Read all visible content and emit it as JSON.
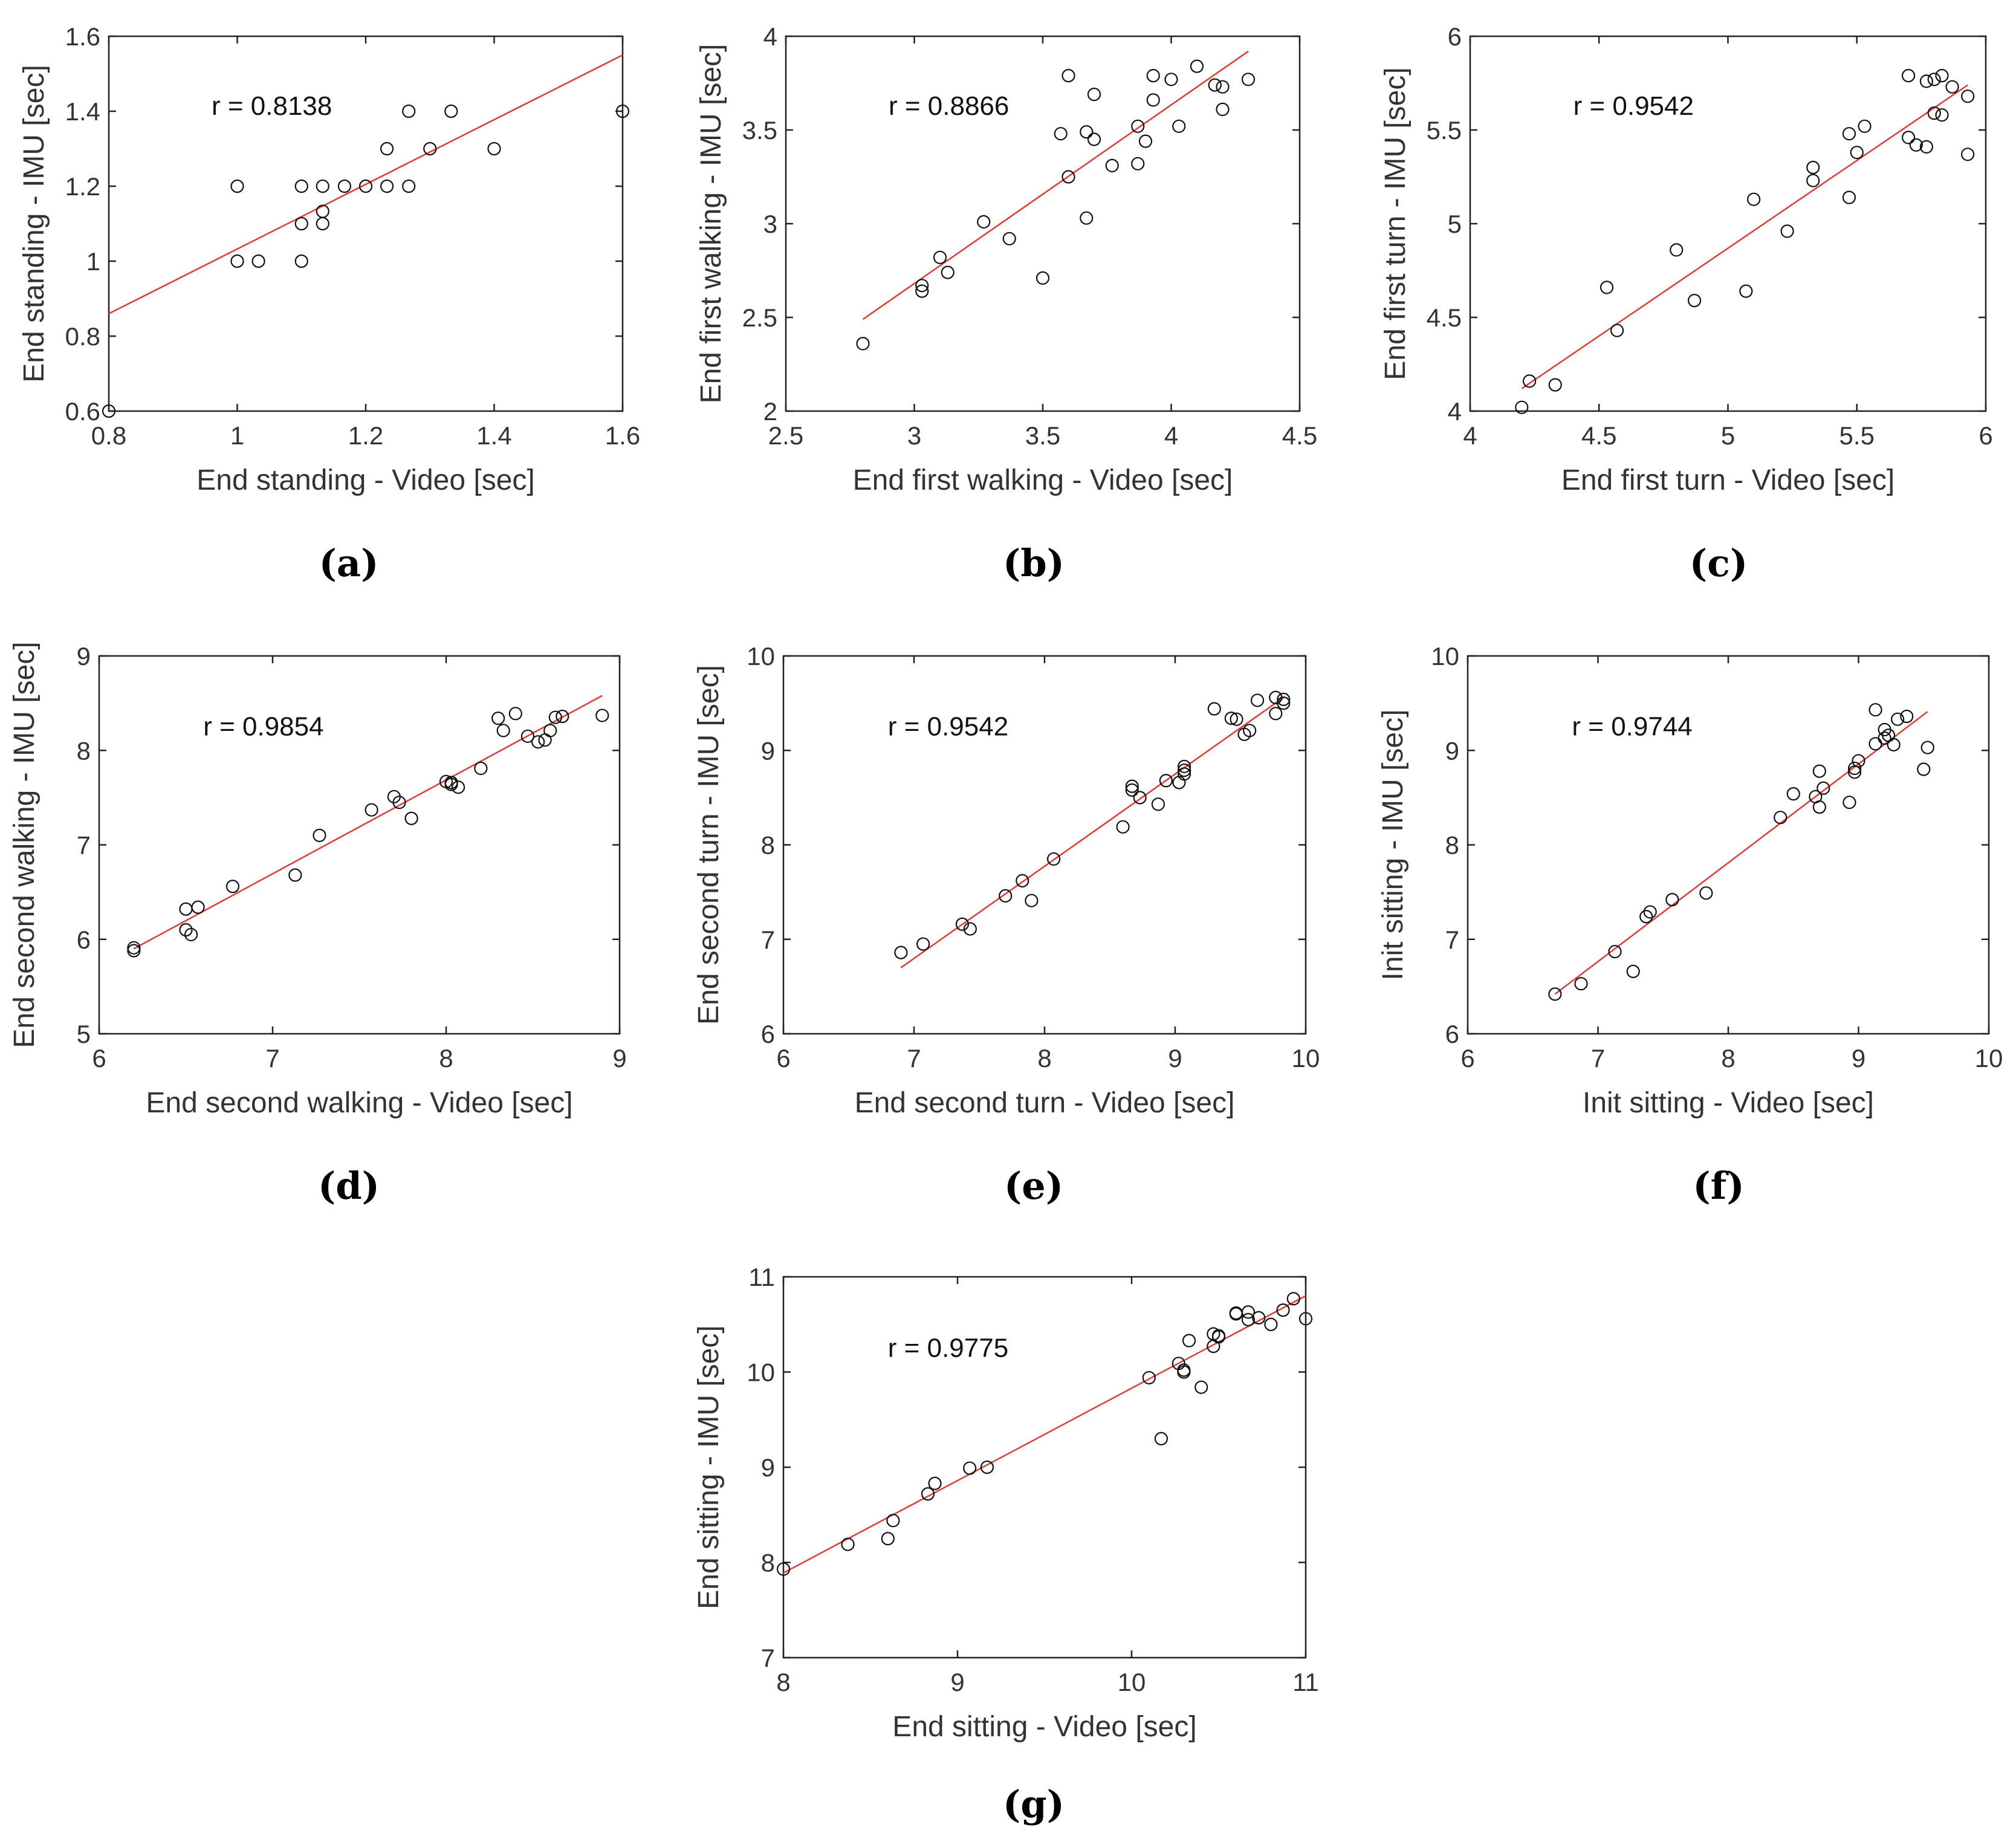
{
  "chart_data": [
    {
      "type": "scatter",
      "label": "(a)",
      "xlabel": "End standing - Video [sec]",
      "ylabel": "End standing - IMU [sec]",
      "annotation": "r = 0.8138",
      "xlim": [
        0.8,
        1.6
      ],
      "ylim": [
        0.6,
        1.6
      ],
      "xticks": [
        0.8,
        1,
        1.2,
        1.4,
        1.6
      ],
      "yticks": [
        0.6,
        0.8,
        1,
        1.2,
        1.4,
        1.6
      ],
      "xtick_labels": [
        "0.8",
        "1",
        "1.2",
        "1.4",
        "1.6"
      ],
      "ytick_labels": [
        "0.6",
        "0.8",
        "1",
        "1.2",
        "1.4",
        "1.6"
      ],
      "fit": {
        "x": [
          0.8,
          1.6
        ],
        "y": [
          0.86,
          1.55
        ]
      },
      "points": [
        [
          0.8,
          0.6
        ],
        [
          1.0,
          1.0
        ],
        [
          1.0,
          1.2
        ],
        [
          1.033,
          1.0
        ],
        [
          1.1,
          1.0
        ],
        [
          1.1,
          1.1
        ],
        [
          1.1,
          1.2
        ],
        [
          1.133,
          1.1
        ],
        [
          1.133,
          1.133
        ],
        [
          1.133,
          1.2
        ],
        [
          1.167,
          1.2
        ],
        [
          1.2,
          1.2
        ],
        [
          1.233,
          1.2
        ],
        [
          1.233,
          1.3
        ],
        [
          1.267,
          1.2
        ],
        [
          1.267,
          1.4
        ],
        [
          1.3,
          1.3
        ],
        [
          1.333,
          1.4
        ],
        [
          1.4,
          1.3
        ],
        [
          1.6,
          1.4
        ]
      ]
    },
    {
      "type": "scatter",
      "label": "(b)",
      "xlabel": "End first walking - Video [sec]",
      "ylabel": "End first walking - IMU [sec]",
      "annotation": "r = 0.8866",
      "xlim": [
        2.5,
        4.5
      ],
      "ylim": [
        2,
        4
      ],
      "xticks": [
        2.5,
        3,
        3.5,
        4,
        4.5
      ],
      "yticks": [
        2,
        2.5,
        3,
        3.5,
        4
      ],
      "xtick_labels": [
        "2.5",
        "3",
        "3.5",
        "4",
        "4.5"
      ],
      "ytick_labels": [
        "2",
        "2.5",
        "3",
        "3.5",
        "4"
      ],
      "fit": {
        "x": [
          2.8,
          4.3
        ],
        "y": [
          2.49,
          3.92
        ]
      },
      "points": [
        [
          2.8,
          2.36
        ],
        [
          3.03,
          2.67
        ],
        [
          3.03,
          2.64
        ],
        [
          3.1,
          2.82
        ],
        [
          3.13,
          2.74
        ],
        [
          3.27,
          3.01
        ],
        [
          3.37,
          2.92
        ],
        [
          3.5,
          2.71
        ],
        [
          3.57,
          3.48
        ],
        [
          3.6,
          3.25
        ],
        [
          3.6,
          3.79
        ],
        [
          3.67,
          3.49
        ],
        [
          3.67,
          3.03
        ],
        [
          3.7,
          3.45
        ],
        [
          3.7,
          3.69
        ],
        [
          3.77,
          3.31
        ],
        [
          3.87,
          3.32
        ],
        [
          3.87,
          3.52
        ],
        [
          3.9,
          3.44
        ],
        [
          3.93,
          3.66
        ],
        [
          3.93,
          3.79
        ],
        [
          4.0,
          3.77
        ],
        [
          4.03,
          3.52
        ],
        [
          4.1,
          3.84
        ],
        [
          4.17,
          3.74
        ],
        [
          4.2,
          3.73
        ],
        [
          4.2,
          3.61
        ],
        [
          4.3,
          3.77
        ]
      ]
    },
    {
      "type": "scatter",
      "label": "(c)",
      "xlabel": "End first turn - Video [sec]",
      "ylabel": "End first turn - IMU [sec]",
      "annotation": "r = 0.9542",
      "xlim": [
        4,
        6
      ],
      "ylim": [
        4,
        6
      ],
      "xticks": [
        4,
        4.5,
        5,
        5.5,
        6
      ],
      "yticks": [
        4,
        4.5,
        5,
        5.5,
        6
      ],
      "xtick_labels": [
        "4",
        "4.5",
        "5",
        "5.5",
        "6"
      ],
      "ytick_labels": [
        "4",
        "4.5",
        "5",
        "5.5",
        "6"
      ],
      "fit": {
        "x": [
          4.2,
          5.93
        ],
        "y": [
          4.12,
          5.74
        ]
      },
      "points": [
        [
          4.2,
          4.02
        ],
        [
          4.23,
          4.16
        ],
        [
          4.33,
          4.14
        ],
        [
          4.53,
          4.66
        ],
        [
          4.57,
          4.43
        ],
        [
          4.8,
          4.86
        ],
        [
          4.87,
          4.59
        ],
        [
          5.07,
          4.64
        ],
        [
          5.1,
          5.13
        ],
        [
          5.23,
          4.96
        ],
        [
          5.33,
          5.23
        ],
        [
          5.33,
          5.3
        ],
        [
          5.47,
          5.14
        ],
        [
          5.47,
          5.48
        ],
        [
          5.5,
          5.38
        ],
        [
          5.53,
          5.52
        ],
        [
          5.7,
          5.46
        ],
        [
          5.7,
          5.79
        ],
        [
          5.73,
          5.42
        ],
        [
          5.77,
          5.41
        ],
        [
          5.77,
          5.76
        ],
        [
          5.8,
          5.77
        ],
        [
          5.8,
          5.59
        ],
        [
          5.83,
          5.79
        ],
        [
          5.83,
          5.58
        ],
        [
          5.87,
          5.73
        ],
        [
          5.93,
          5.68
        ],
        [
          5.93,
          5.37
        ]
      ]
    },
    {
      "type": "scatter",
      "label": "(d)",
      "xlabel": "End second walking - Video [sec]",
      "ylabel": "End second walking - IMU [sec]",
      "annotation": "r = 0.9854",
      "xlim": [
        6,
        9
      ],
      "ylim": [
        5,
        9
      ],
      "xticks": [
        6,
        7,
        8,
        9
      ],
      "yticks": [
        5,
        6,
        7,
        8,
        9
      ],
      "xtick_labels": [
        "6",
        "7",
        "8",
        "9"
      ],
      "ytick_labels": [
        "5",
        "6",
        "7",
        "8",
        "9"
      ],
      "fit": {
        "x": [
          6.2,
          8.9
        ],
        "y": [
          5.9,
          8.58
        ]
      },
      "points": [
        [
          6.2,
          5.88
        ],
        [
          6.2,
          5.91
        ],
        [
          6.5,
          6.32
        ],
        [
          6.5,
          6.1
        ],
        [
          6.53,
          6.05
        ],
        [
          6.57,
          6.34
        ],
        [
          6.77,
          6.56
        ],
        [
          7.13,
          6.68
        ],
        [
          7.27,
          7.1
        ],
        [
          7.57,
          7.37
        ],
        [
          7.7,
          7.51
        ],
        [
          7.73,
          7.45
        ],
        [
          7.8,
          7.28
        ],
        [
          8.0,
          7.67
        ],
        [
          8.03,
          7.66
        ],
        [
          8.03,
          7.64
        ],
        [
          8.07,
          7.61
        ],
        [
          8.2,
          7.81
        ],
        [
          8.3,
          8.34
        ],
        [
          8.33,
          8.21
        ],
        [
          8.4,
          8.39
        ],
        [
          8.47,
          8.15
        ],
        [
          8.53,
          8.09
        ],
        [
          8.57,
          8.11
        ],
        [
          8.6,
          8.21
        ],
        [
          8.63,
          8.35
        ],
        [
          8.67,
          8.36
        ],
        [
          8.9,
          8.37
        ]
      ]
    },
    {
      "type": "scatter",
      "label": "(e)",
      "xlabel": "End second turn - Video [sec]",
      "ylabel": "End second turn - IMU [sec]",
      "annotation": "r = 0.9542",
      "xlim": [
        6,
        10
      ],
      "ylim": [
        6,
        10
      ],
      "xticks": [
        6,
        7,
        8,
        9,
        10
      ],
      "yticks": [
        6,
        7,
        8,
        9,
        10
      ],
      "xtick_labels": [
        "6",
        "7",
        "8",
        "9",
        "10"
      ],
      "ytick_labels": [
        "6",
        "7",
        "8",
        "9",
        "10"
      ],
      "fit": {
        "x": [
          6.9,
          9.83
        ],
        "y": [
          6.7,
          9.56
        ]
      },
      "points": [
        [
          6.9,
          6.86
        ],
        [
          7.07,
          6.95
        ],
        [
          7.37,
          7.16
        ],
        [
          7.43,
          7.11
        ],
        [
          7.7,
          7.46
        ],
        [
          7.83,
          7.62
        ],
        [
          7.9,
          7.41
        ],
        [
          8.07,
          7.85
        ],
        [
          8.6,
          8.19
        ],
        [
          8.67,
          8.58
        ],
        [
          8.67,
          8.62
        ],
        [
          8.73,
          8.5
        ],
        [
          8.87,
          8.43
        ],
        [
          8.93,
          8.68
        ],
        [
          9.03,
          8.66
        ],
        [
          9.07,
          8.75
        ],
        [
          9.07,
          8.79
        ],
        [
          9.07,
          8.83
        ],
        [
          9.3,
          9.44
        ],
        [
          9.43,
          9.34
        ],
        [
          9.47,
          9.33
        ],
        [
          9.53,
          9.17
        ],
        [
          9.57,
          9.21
        ],
        [
          9.63,
          9.53
        ],
        [
          9.77,
          9.39
        ],
        [
          9.77,
          9.56
        ],
        [
          9.83,
          9.5
        ],
        [
          9.83,
          9.54
        ]
      ]
    },
    {
      "type": "scatter",
      "label": "(f)",
      "xlabel": "Init sitting - Video [sec]",
      "ylabel": "Init sitting - IMU [sec]",
      "annotation": "r = 0.9744",
      "xlim": [
        6,
        10
      ],
      "ylim": [
        6,
        10
      ],
      "xticks": [
        6,
        7,
        8,
        9,
        10
      ],
      "yticks": [
        6,
        7,
        8,
        9,
        10
      ],
      "xtick_labels": [
        "6",
        "7",
        "8",
        "9",
        "10"
      ],
      "ytick_labels": [
        "6",
        "7",
        "8",
        "9",
        "10"
      ],
      "fit": {
        "x": [
          6.67,
          9.53
        ],
        "y": [
          6.42,
          9.41
        ]
      },
      "points": [
        [
          6.67,
          6.42
        ],
        [
          6.87,
          6.53
        ],
        [
          7.13,
          6.87
        ],
        [
          7.27,
          6.66
        ],
        [
          7.37,
          7.24
        ],
        [
          7.4,
          7.29
        ],
        [
          7.57,
          7.42
        ],
        [
          7.83,
          7.49
        ],
        [
          8.4,
          8.29
        ],
        [
          8.5,
          8.54
        ],
        [
          8.67,
          8.51
        ],
        [
          8.7,
          8.4
        ],
        [
          8.7,
          8.78
        ],
        [
          8.73,
          8.6
        ],
        [
          8.93,
          8.45
        ],
        [
          8.97,
          8.77
        ],
        [
          8.97,
          8.81
        ],
        [
          9.0,
          8.89
        ],
        [
          9.13,
          9.43
        ],
        [
          9.13,
          9.07
        ],
        [
          9.2,
          9.13
        ],
        [
          9.2,
          9.22
        ],
        [
          9.23,
          9.16
        ],
        [
          9.27,
          9.06
        ],
        [
          9.3,
          9.33
        ],
        [
          9.37,
          9.36
        ],
        [
          9.5,
          8.8
        ],
        [
          9.53,
          9.03
        ]
      ]
    },
    {
      "type": "scatter",
      "label": "(g)",
      "xlabel": "End sitting - Video [sec]",
      "ylabel": "End sitting - IMU [sec]",
      "annotation": "r = 0.9775",
      "xlim": [
        8,
        11
      ],
      "ylim": [
        7,
        11
      ],
      "xticks": [
        8,
        9,
        10,
        11
      ],
      "yticks": [
        7,
        8,
        9,
        10,
        11
      ],
      "xtick_labels": [
        "8",
        "9",
        "10",
        "11"
      ],
      "ytick_labels": [
        "7",
        "8",
        "9",
        "10",
        "11"
      ],
      "fit": {
        "x": [
          8.0,
          11.0
        ],
        "y": [
          7.89,
          10.8
        ]
      },
      "points": [
        [
          8.0,
          7.93
        ],
        [
          8.37,
          8.19
        ],
        [
          8.6,
          8.25
        ],
        [
          8.63,
          8.44
        ],
        [
          8.83,
          8.72
        ],
        [
          8.87,
          8.83
        ],
        [
          9.07,
          8.99
        ],
        [
          9.17,
          9.0
        ],
        [
          10.1,
          9.94
        ],
        [
          10.17,
          9.3
        ],
        [
          10.27,
          10.09
        ],
        [
          10.3,
          10.0
        ],
        [
          10.3,
          10.02
        ],
        [
          10.33,
          10.33
        ],
        [
          10.4,
          9.84
        ],
        [
          10.47,
          10.27
        ],
        [
          10.47,
          10.4
        ],
        [
          10.5,
          10.37
        ],
        [
          10.5,
          10.38
        ],
        [
          10.6,
          10.61
        ],
        [
          10.6,
          10.62
        ],
        [
          10.67,
          10.55
        ],
        [
          10.67,
          10.63
        ],
        [
          10.73,
          10.57
        ],
        [
          10.8,
          10.5
        ],
        [
          10.87,
          10.65
        ],
        [
          10.93,
          10.77
        ],
        [
          11.0,
          10.56
        ]
      ]
    }
  ]
}
